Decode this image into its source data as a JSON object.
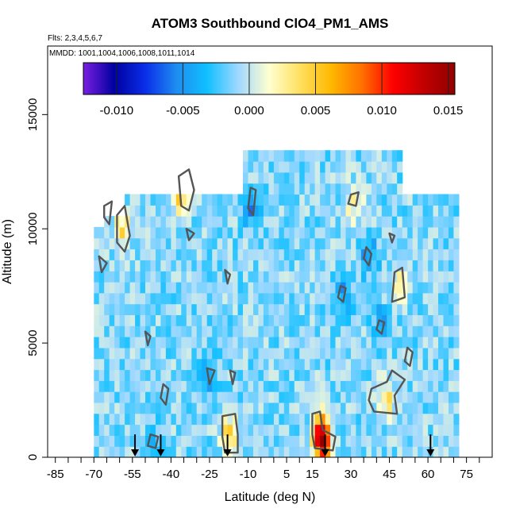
{
  "chart_data": {
    "type": "heatmap",
    "title": "ATOM3 Southbound ClO4_PM1_AMS",
    "flights_label": "Flts: 2,3,4,5,6,7",
    "mmdd_label": "MMDD: 1001,1004,1006,1008,1011,1014",
    "xlabel": "Latitude (deg N)",
    "ylabel": "Altitude (m)",
    "xlim": [
      -88,
      85
    ],
    "ylim": [
      0,
      18000
    ],
    "x_ticks": [
      -85,
      -70,
      -55,
      -40,
      -25,
      -10,
      5,
      15,
      30,
      45,
      60,
      75
    ],
    "x_minor_ticks": [
      -80,
      -75,
      -65,
      -60,
      -50,
      -45,
      -35,
      -30,
      -20,
      -15,
      -5,
      0,
      10,
      20,
      25,
      35,
      40,
      50,
      55,
      65,
      70,
      80
    ],
    "y_ticks": [
      0,
      5000,
      10000,
      15000
    ],
    "colorbar": {
      "range": [
        -0.0125,
        0.0155
      ],
      "ticks": [
        -0.01,
        -0.005,
        0.0,
        0.005,
        0.01,
        0.015
      ],
      "tick_labels": [
        "-0.010",
        "-0.005",
        "0.000",
        "0.005",
        "0.010",
        "0.015"
      ],
      "colors": [
        "#7a1fe0",
        "#0000a0",
        "#0a2ee8",
        "#1e8cf0",
        "#10c0ff",
        "#9fd8ff",
        "#ffffd0",
        "#ffe060",
        "#ffb800",
        "#ff7000",
        "#ff0000",
        "#c00000",
        "#900000"
      ]
    },
    "arrow_latitudes": [
      -54,
      -44,
      -18,
      20,
      61
    ],
    "hotspots": [
      {
        "lat": -17,
        "alt": 1000,
        "value": 0.006
      },
      {
        "lat": 18,
        "alt": 1200,
        "value": 0.007
      },
      {
        "lat": 19,
        "alt": 700,
        "value": 0.013
      },
      {
        "lat": 44,
        "alt": 2600,
        "value": 0.005
      },
      {
        "lat": -37,
        "alt": 11500,
        "value": 0.006
      },
      {
        "lat": -32,
        "alt": 12000,
        "value": 0.005
      },
      {
        "lat": -59,
        "alt": 10000,
        "value": 0.005
      },
      {
        "lat": 49,
        "alt": 7500,
        "value": 0.004
      },
      {
        "lat": 31,
        "alt": 11200,
        "value": 0.004
      },
      {
        "lat": -8,
        "alt": 10800,
        "value": -0.004
      },
      {
        "lat": 37,
        "alt": 8800,
        "value": -0.004
      },
      {
        "lat": 27,
        "alt": 7200,
        "value": -0.004
      },
      {
        "lat": 42,
        "alt": 5800,
        "value": -0.004
      },
      {
        "lat": -25,
        "alt": 3500,
        "value": -0.003
      },
      {
        "lat": -47,
        "alt": 700,
        "value": -0.003
      }
    ],
    "contours": [
      {
        "level": 0.004,
        "points": [
          [
            -20,
            1800
          ],
          [
            -15,
            1900
          ],
          [
            -14,
            1000
          ],
          [
            -14,
            200
          ],
          [
            -19,
            200
          ],
          [
            -20,
            900
          ]
        ]
      },
      {
        "level": 0.004,
        "points": [
          [
            15,
            1900
          ],
          [
            18,
            2000
          ],
          [
            19,
            1200
          ],
          [
            24,
            900
          ],
          [
            23,
            300
          ],
          [
            16,
            400
          ],
          [
            15,
            1000
          ]
        ]
      },
      {
        "level": 0.004,
        "points": [
          [
            38,
            3000
          ],
          [
            44,
            3300
          ],
          [
            46,
            3800
          ],
          [
            51,
            3400
          ],
          [
            47,
            2700
          ],
          [
            48,
            1900
          ],
          [
            39,
            2000
          ],
          [
            37,
            2500
          ]
        ]
      },
      {
        "level": 0.004,
        "points": [
          [
            47,
            8100
          ],
          [
            50,
            8300
          ],
          [
            51,
            7000
          ],
          [
            46,
            6800
          ]
        ]
      },
      {
        "level": 0.004,
        "points": [
          [
            -37,
            12300
          ],
          [
            -33,
            12600
          ],
          [
            -31,
            11700
          ],
          [
            -33,
            10800
          ],
          [
            -36,
            11000
          ]
        ]
      },
      {
        "level": 0.004,
        "points": [
          [
            -61,
            10600
          ],
          [
            -58,
            11000
          ],
          [
            -56,
            9700
          ],
          [
            -58,
            9000
          ],
          [
            -61,
            9400
          ]
        ]
      },
      {
        "level": 0.004,
        "points": [
          [
            30,
            11500
          ],
          [
            33,
            11600
          ],
          [
            32,
            11000
          ],
          [
            29,
            11100
          ]
        ]
      },
      {
        "level": 0.004,
        "points": [
          [
            -34,
            10000
          ],
          [
            -31,
            9800
          ],
          [
            -33,
            9500
          ]
        ]
      },
      {
        "level": -0.004,
        "points": [
          [
            -9,
            11800
          ],
          [
            -7,
            11700
          ],
          [
            -8,
            10600
          ],
          [
            -10,
            10900
          ]
        ]
      },
      {
        "level": -0.004,
        "points": [
          [
            36,
            9200
          ],
          [
            38,
            8900
          ],
          [
            37,
            8400
          ],
          [
            35,
            8700
          ]
        ]
      },
      {
        "level": -0.004,
        "points": [
          [
            26,
            7500
          ],
          [
            28,
            7400
          ],
          [
            27,
            6800
          ],
          [
            25,
            7000
          ]
        ]
      },
      {
        "level": -0.004,
        "points": [
          [
            41,
            6000
          ],
          [
            43,
            5900
          ],
          [
            42,
            5400
          ],
          [
            40,
            5600
          ]
        ]
      },
      {
        "level": -0.004,
        "points": [
          [
            -26,
            3900
          ],
          [
            -23,
            3800
          ],
          [
            -25,
            3200
          ]
        ]
      },
      {
        "level": -0.004,
        "points": [
          [
            -48,
            1000
          ],
          [
            -45,
            900
          ],
          [
            -46,
            400
          ],
          [
            -49,
            500
          ]
        ]
      },
      {
        "level": -0.004,
        "points": [
          [
            -43,
            3200
          ],
          [
            -41,
            3000
          ],
          [
            -42,
            2300
          ],
          [
            -44,
            2600
          ]
        ]
      },
      {
        "level": -0.004,
        "points": [
          [
            -68,
            8800
          ],
          [
            -65,
            8500
          ],
          [
            -67,
            8100
          ]
        ]
      },
      {
        "level": -0.004,
        "points": [
          [
            -66,
            11000
          ],
          [
            -63,
            11200
          ],
          [
            -64,
            10200
          ],
          [
            -66,
            10500
          ]
        ]
      },
      {
        "level": -0.004,
        "points": [
          [
            52,
            4800
          ],
          [
            54,
            4600
          ],
          [
            53,
            4000
          ],
          [
            51,
            4200
          ]
        ]
      },
      {
        "level": -0.004,
        "points": [
          [
            45,
            9800
          ],
          [
            47,
            9700
          ],
          [
            46,
            9400
          ]
        ]
      },
      {
        "level": -0.004,
        "points": [
          [
            -17,
            3800
          ],
          [
            -15,
            3700
          ],
          [
            -16,
            3200
          ]
        ]
      },
      {
        "level": -0.004,
        "points": [
          [
            -50,
            5500
          ],
          [
            -48,
            5300
          ],
          [
            -49,
            4900
          ]
        ]
      },
      {
        "level": -0.004,
        "points": [
          [
            -19,
            8200
          ],
          [
            -17,
            8000
          ],
          [
            -18,
            7600
          ]
        ]
      }
    ]
  }
}
